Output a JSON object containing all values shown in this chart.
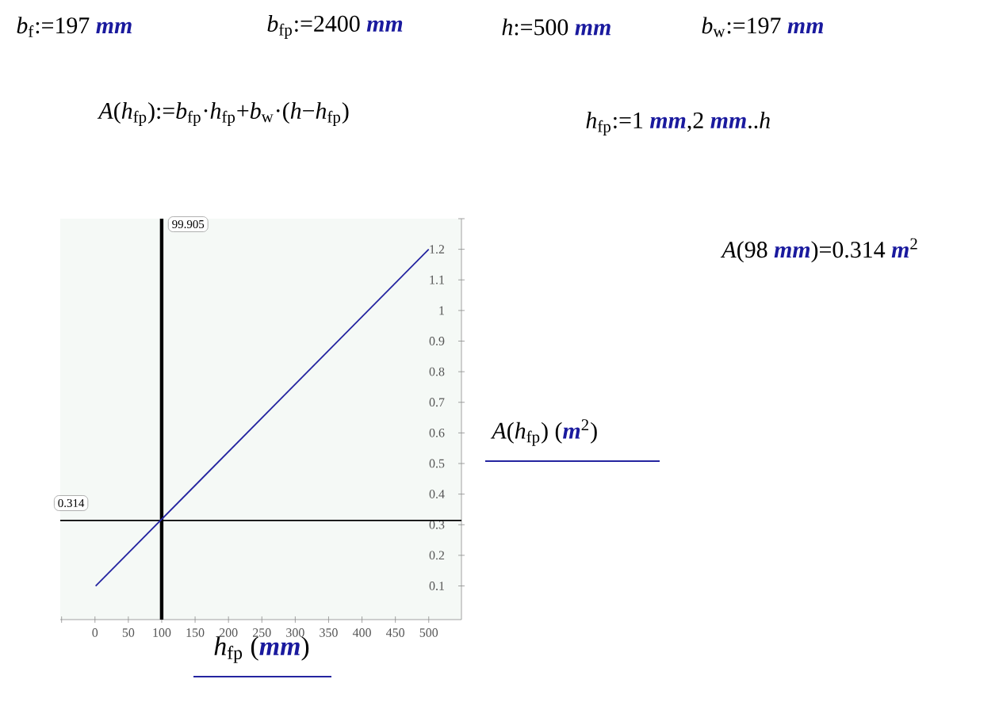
{
  "chart_data": {
    "type": "line",
    "xlabel": "*h*$_{fp}$ (**mm**)",
    "ylabel": "*A*(*h*$_{fp}$) (**m**$^{2}$)",
    "x": [
      1,
      500
    ],
    "series": [
      {
        "color": "#2424a0",
        "values": [
          0.1,
          1.2
        ]
      }
    ],
    "xlim": [
      -52,
      549
    ],
    "ylim": [
      -0.01,
      1.3
    ],
    "xticks": [
      {
        "value": -50,
        "label": null
      },
      0,
      50,
      100,
      150,
      200,
      250,
      300,
      350,
      400,
      450,
      500
    ],
    "yticks": [
      0.1,
      0.2,
      0.3,
      0.4,
      0.5,
      0.6,
      0.7,
      0.8,
      0.9,
      1,
      1.1,
      1.2,
      {
        "value": 1.3,
        "label": null
      }
    ],
    "ref_lines": [
      {
        "axis": "x",
        "value": 99.905,
        "label": "99.905",
        "color": "#000000"
      },
      {
        "axis": "y",
        "value": 0.314,
        "label": "0.314",
        "color": "#000000"
      }
    ],
    "annotations": [
      "*b*$_{f}$:=197 **mm**",
      "*b*$_{fp}$:=2400 **mm**",
      "*h*:=500 **mm**",
      "*b*$_{w}$:=197 **mm**",
      "*A*(*h*$_{fp}$):=*b*$_{fp}$·*h*$_{fp}$+*b*$_{w}$·(*h*−*h*$_{fp}$)",
      "*h*$_{fp}$:=1 **mm**,2 **mm**..*h*",
      "*A*(98 **mm**)=0.314 **m**$^{2}$"
    ],
    "marker": "none",
    "line_style": "solid"
  }
}
